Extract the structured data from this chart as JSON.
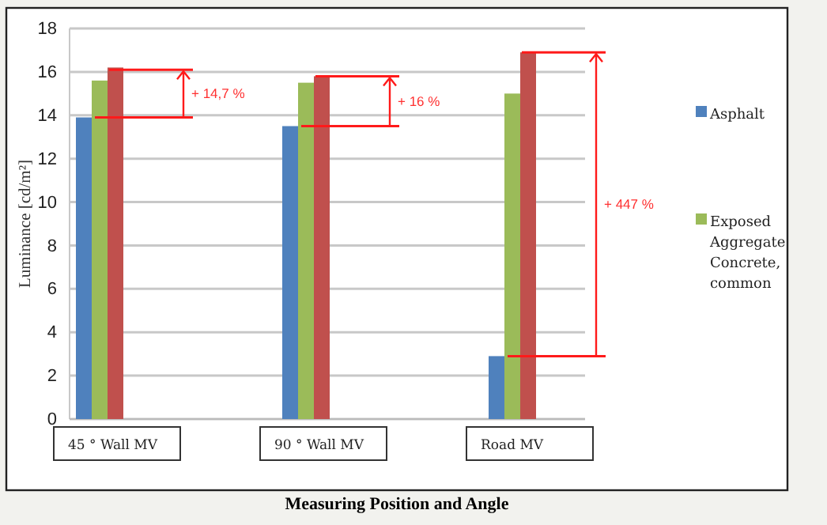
{
  "chart_data": {
    "type": "bar",
    "xlabel": "Measuring Position and Angle",
    "ylabel": "Luminance [cd/m²]",
    "categories": [
      "45 ° Wall MV",
      "90 ° Wall MV",
      "Road MV"
    ],
    "series": [
      {
        "name": "Asphalt",
        "color": "#4f81bd",
        "values": [
          13.9,
          13.5,
          2.9
        ]
      },
      {
        "name": "Exposed Aggregate Concrete, common",
        "color": "#9bbb59",
        "values": [
          15.6,
          15.5,
          15.0
        ]
      },
      {
        "color": "#c0504d",
        "values": [
          16.2,
          15.8,
          16.9
        ]
      }
    ],
    "ylim": [
      0,
      18
    ],
    "yticks": [
      0,
      2,
      4,
      6,
      8,
      10,
      12,
      14,
      16,
      18
    ],
    "grid": "y",
    "legend": "right",
    "annotations": [
      {
        "text": "+ 14,7 %",
        "x": "45 ° Wall MV",
        "y": 16.1
      },
      {
        "text": "+ 16 %",
        "x": "90 ° Wall MV",
        "y": 15.8
      },
      "+ 447 %"
    ]
  }
}
